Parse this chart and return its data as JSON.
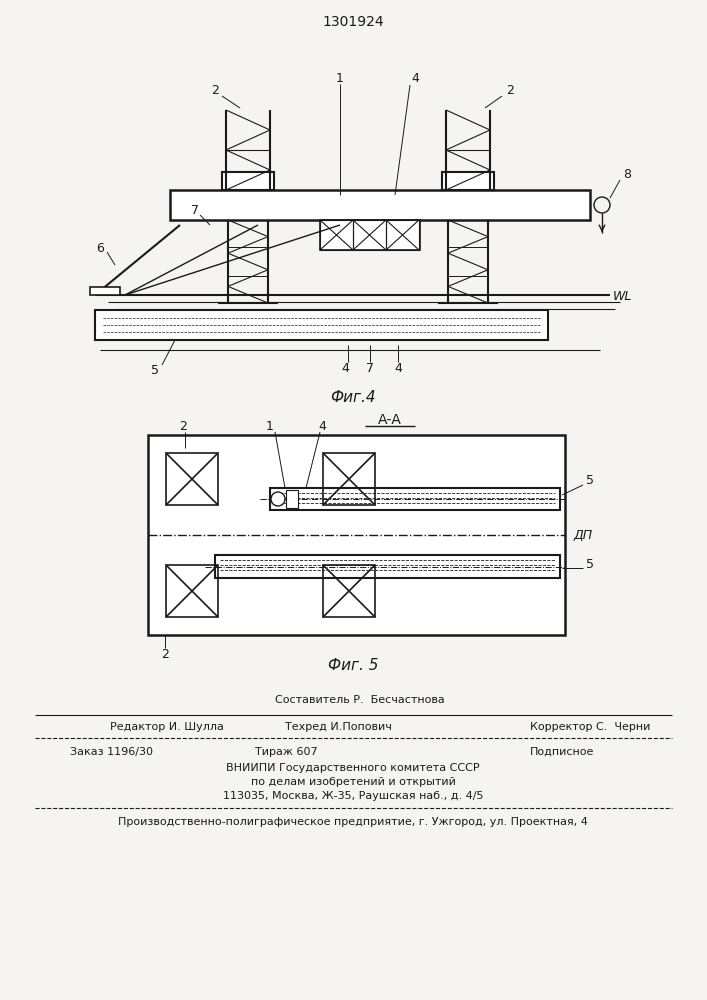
{
  "patent_number": "1301924",
  "bg_color": "#f5f4f0",
  "line_color": "#1a1a1a",
  "fig4_caption": "Фиг.4",
  "fig5_caption": "Фиг. 5",
  "section_label": "А-А",
  "wl_label": "WL",
  "dp_label": "ДП"
}
